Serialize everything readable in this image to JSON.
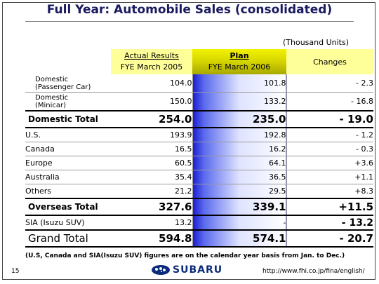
{
  "title": "Full Year: Automobile Sales (consolidated)",
  "units": "(Thousand Units)",
  "header": {
    "actual_line1": "Actual Results",
    "actual_line2": "FYE March 2005",
    "plan_line1": "Plan",
    "plan_line2": "FYE March 2006",
    "changes": "Changes"
  },
  "rows": [
    {
      "label1": "Domestic",
      "label2": "(Passenger Car)",
      "actual": "104.0",
      "plan": "101.8",
      "change": "- 2.3"
    },
    {
      "label1": "Domestic",
      "label2": "(Minicar)",
      "actual": "150.0",
      "plan": "133.2",
      "change": "- 16.8"
    },
    {
      "label": "Domestic Total",
      "actual": "254.0",
      "plan": "235.0",
      "change": "- 19.0"
    },
    {
      "label": "U.S.",
      "actual": "193.9",
      "plan": "192.8",
      "change": "- 1.2"
    },
    {
      "label": "Canada",
      "actual": "16.5",
      "plan": "16.2",
      "change": "- 0.3"
    },
    {
      "label": "Europe",
      "actual": "60.5",
      "plan": "64.1",
      "change": "+3.6"
    },
    {
      "label": "Australia",
      "actual": "35.4",
      "plan": "36.5",
      "change": "+1.1"
    },
    {
      "label": "Others",
      "actual": "21.2",
      "plan": "29.5",
      "change": "+8.3"
    },
    {
      "label": "Overseas Total",
      "actual": "327.6",
      "plan": "339.1",
      "change": "+11.5"
    },
    {
      "label": "SIA (Isuzu SUV)",
      "actual": "13.2",
      "plan": "-",
      "change": "- 13.2"
    },
    {
      "label": "Grand Total",
      "actual": "594.8",
      "plan": "574.1",
      "change": "- 20.7"
    }
  ],
  "footnote": "(U.S, Canada and SIA(Isuzu SUV) figures are on the calendar year basis from Jan. to Dec.)",
  "page_number": "15",
  "brand": "SUBARU",
  "url": "http://www.fhi.co.jp/fina/english/"
}
